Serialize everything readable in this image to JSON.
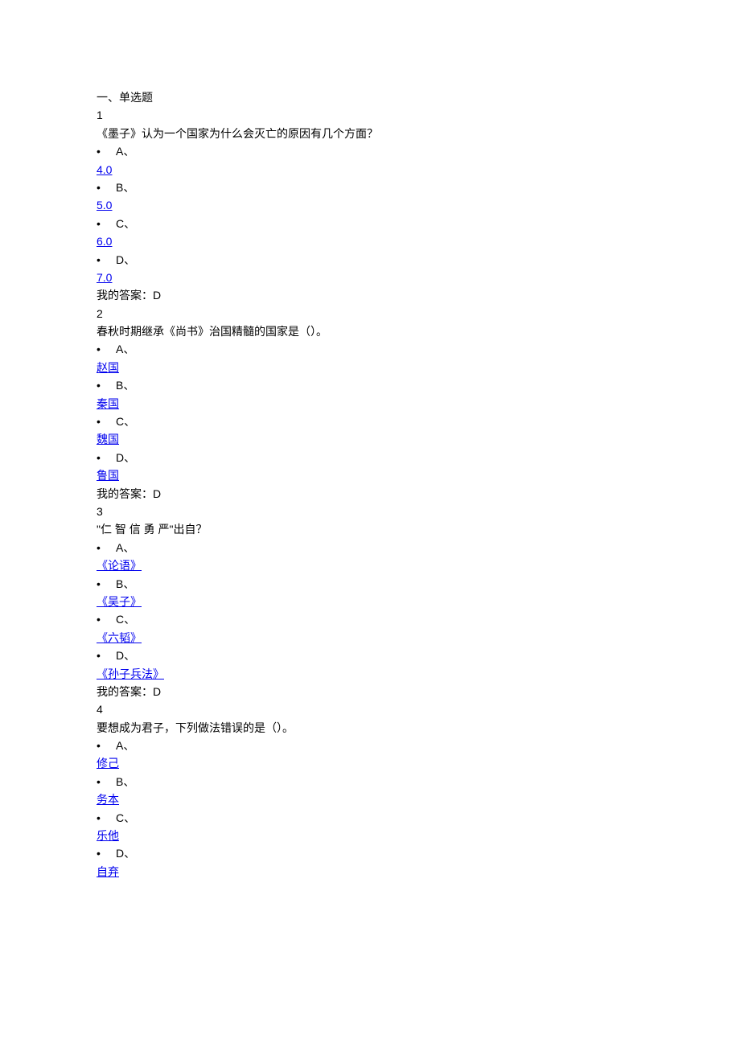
{
  "section_title": "一、单选题",
  "questions": [
    {
      "number": "1",
      "stem": "《墨子》认为一个国家为什么会灭亡的原因有几个方面？",
      "options": [
        {
          "letter": "A、",
          "text": "4.0"
        },
        {
          "letter": "B、",
          "text": "5.0"
        },
        {
          "letter": "C、",
          "text": "6.0"
        },
        {
          "letter": "D、",
          "text": "7.0"
        }
      ],
      "answer_label": "我的答案：D"
    },
    {
      "number": "2",
      "stem": "春秋时期继承《尚书》治国精髓的国家是（）。",
      "options": [
        {
          "letter": "A、",
          "text": "赵国"
        },
        {
          "letter": "B、",
          "text": "秦国"
        },
        {
          "letter": "C、",
          "text": "魏国"
        },
        {
          "letter": "D、",
          "text": "鲁国"
        }
      ],
      "answer_label": "我的答案：D"
    },
    {
      "number": "3",
      "stem": "\"仁  智  信  勇  严\"出自？",
      "options": [
        {
          "letter": "A、",
          "text": "《论语》"
        },
        {
          "letter": "B、",
          "text": "《吴子》"
        },
        {
          "letter": "C、",
          "text": "《六韬》"
        },
        {
          "letter": "D、",
          "text": "《孙子兵法》"
        }
      ],
      "answer_label": "我的答案：D"
    },
    {
      "number": "4",
      "stem": "要想成为君子，下列做法错误的是（）。",
      "options": [
        {
          "letter": "A、",
          "text": "修己"
        },
        {
          "letter": "B、",
          "text": "务本"
        },
        {
          "letter": "C、",
          "text": "乐他"
        },
        {
          "letter": "D、",
          "text": "自弃"
        }
      ],
      "answer_label": null
    }
  ]
}
